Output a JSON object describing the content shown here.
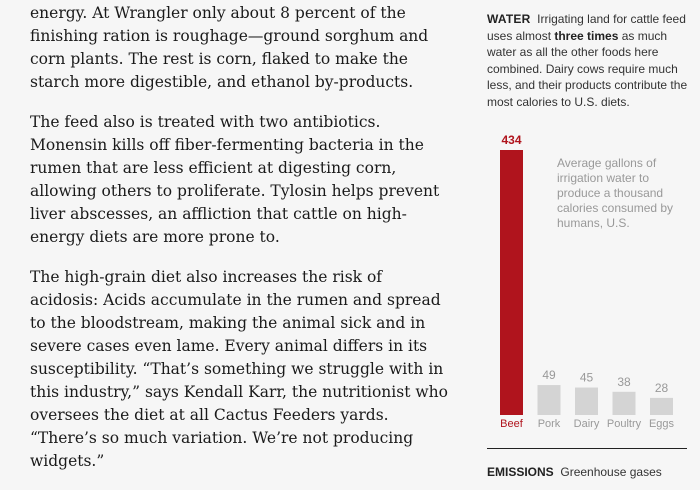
{
  "article": {
    "paragraphs": [
      "energy. At Wrangler only about 8 percent of the finishing ration is roughage—ground sorghum and corn plants. The rest is corn, flaked to make the starch more digestible, and ethanol by-products.",
      "The feed also is treated with two antibiotics. Monensin kills off fiber-fermenting bacteria in the rumen that are less efficient at digesting corn, allowing others to proliferate. Tylosin helps prevent liver abscesses, an affliction that cattle on high-energy diets are more prone to.",
      "The high-grain diet also increases the risk of acidosis: Acids accumulate in the rumen and spread to the bloodstream, making the animal sick and in severe cases even lame. Every animal differs in its susceptibility. “That’s something we struggle with in this industry,” says Kendall Karr, the nutritionist who oversees the diet at all Cactus Feeders yards. “There’s so much variation. We’re not producing widgets.”"
    ]
  },
  "sidebar": {
    "kicker": "WATER",
    "intro_before": "Irrigating land for cattle feed uses almost ",
    "intro_emphasis": "three times",
    "intro_after": " as much water as all the other foods here combined. Dairy cows require much less, and their products contribute the most calories to U.S. diets.",
    "chart_note": "Average gallons of irrigation water to produce a thousand calories consumed by humans, U.S."
  },
  "chart_data": {
    "type": "bar",
    "categories": [
      "Beef",
      "Pork",
      "Dairy",
      "Poultry",
      "Eggs"
    ],
    "values": [
      434,
      49,
      45,
      38,
      28
    ],
    "highlight_index": 0,
    "colors": {
      "highlight": "#b0141d",
      "default": "#d4d4d4",
      "label_default": "#999999"
    },
    "ylim": [
      0,
      434
    ]
  },
  "next_section": {
    "kicker": "EMISSIONS",
    "text": "Greenhouse gases"
  }
}
